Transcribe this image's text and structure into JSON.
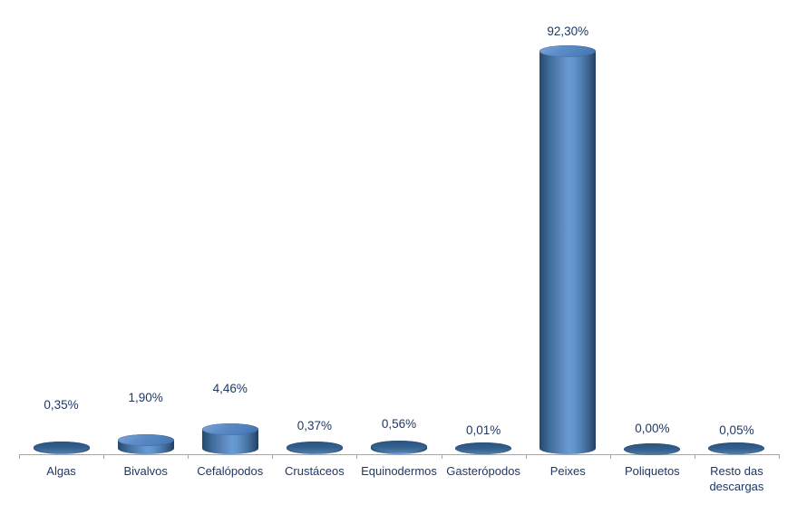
{
  "chart_data": {
    "type": "bar",
    "subtype": "3d-cylinder",
    "title": "",
    "xlabel": "",
    "ylabel": "",
    "categories": [
      "Algas",
      "Bivalvos",
      "Cefalópodos",
      "Crustáceos",
      "Equinodermos",
      "Gasterópodos",
      "Peixes",
      "Poliquetos",
      "Resto das descargas"
    ],
    "values": [
      0.35,
      1.9,
      4.46,
      0.37,
      0.56,
      0.01,
      92.3,
      0.0,
      0.05
    ],
    "value_labels": [
      "0,35%",
      "1,90%",
      "4,46%",
      "0,37%",
      "0,56%",
      "0,01%",
      "92,30%",
      "0,00%",
      "0,05%"
    ],
    "ylim": [
      0,
      100
    ],
    "grid": false,
    "legend": false,
    "data_labels_position": "above",
    "colors": {
      "bar_fill": "#4F81BD",
      "bar_dark_edge": "#26456A",
      "bar_highlight": "#6A9AD2",
      "label_text": "#1F3864",
      "axis": "#A6A6A6",
      "background": "#FFFFFF"
    }
  }
}
